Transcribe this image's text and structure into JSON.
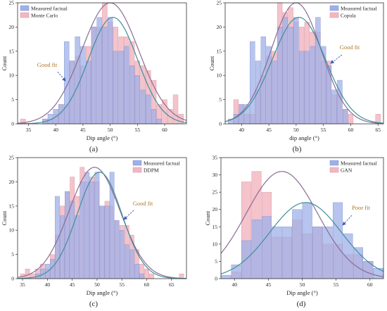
{
  "colors": {
    "measured_fill": "#9fb0e8",
    "measured_stroke": "#7d90d2",
    "measured_curve": "#3f8f9a",
    "synth_fill": "#f2b8c2",
    "synth_stroke": "#d8909c",
    "synth_curve": "#8a6d95",
    "overlap": "#c9b1e0",
    "annotation_arrow": "#3a5fb0",
    "annotation_text": "#b0782b",
    "axis": "#333333"
  },
  "chart_data": [
    {
      "type": "bar",
      "panel_label": "(a)",
      "xlabel": "Dip angle (°)",
      "ylabel": "Count",
      "xlim": [
        33,
        64
      ],
      "ylim": [
        0,
        25
      ],
      "xticks": [
        35,
        40,
        45,
        50,
        55,
        60
      ],
      "yticks": [
        0,
        5,
        10,
        15,
        20,
        25
      ],
      "bin_width": 1,
      "legend": {
        "position": "top-left",
        "entries": [
          "Measured factual",
          "Monte Carlo"
        ]
      },
      "annotation": {
        "text": "Good fit"
      },
      "series": [
        {
          "name": "Measured factual",
          "x": [
            38,
            39,
            40,
            41,
            42,
            43,
            44,
            45,
            46,
            47,
            48,
            49,
            50,
            51,
            52,
            53,
            54,
            55,
            56,
            57,
            58,
            59
          ],
          "values": [
            1,
            2,
            3,
            4,
            17,
            13,
            18,
            16,
            13,
            20,
            22,
            20,
            22,
            15,
            15,
            16,
            12,
            10,
            7,
            6,
            3,
            1
          ],
          "fit": {
            "mean": 50.5,
            "peak": 22
          }
        },
        {
          "name": "Monte Carlo",
          "x": [
            34,
            35,
            36,
            37,
            38,
            39,
            40,
            41,
            42,
            43,
            44,
            45,
            46,
            47,
            48,
            49,
            50,
            51,
            52,
            53,
            54,
            55,
            56,
            57,
            58,
            59,
            60,
            61,
            62,
            63
          ],
          "values": [
            1,
            0,
            0,
            0,
            1,
            1,
            2,
            4,
            4,
            13,
            14,
            12,
            16,
            20,
            20,
            25,
            21,
            20,
            18,
            18,
            17,
            13,
            12,
            11,
            9,
            4,
            5,
            3,
            6,
            2
          ],
          "fit": {
            "mean": 50,
            "peak": 25
          }
        }
      ]
    },
    {
      "type": "bar",
      "panel_label": "(b)",
      "xlabel": "dip angle (°)",
      "ylabel": "Count",
      "xlim": [
        37,
        66
      ],
      "ylim": [
        0,
        25
      ],
      "xticks": [
        40,
        45,
        50,
        55,
        60,
        65
      ],
      "yticks": [
        0,
        5,
        10,
        15,
        20,
        25
      ],
      "bin_width": 1,
      "legend": {
        "position": "top-right",
        "entries": [
          "Measured factual",
          "Copula"
        ]
      },
      "annotation": {
        "text": "Good fit"
      },
      "series": [
        {
          "name": "Measured factual",
          "x": [
            38,
            39,
            40,
            41,
            42,
            43,
            44,
            45,
            46,
            47,
            48,
            49,
            50,
            51,
            52,
            53,
            54,
            55,
            56,
            57,
            58,
            59
          ],
          "values": [
            1,
            2,
            4,
            4,
            17,
            13,
            18,
            16,
            13,
            20,
            22,
            20,
            22,
            15,
            15,
            16,
            22,
            16,
            12,
            7,
            9,
            3
          ],
          "fit": {
            "mean": 50.5,
            "peak": 22
          }
        },
        {
          "name": "Copula",
          "x": [
            39,
            40,
            41,
            42,
            43,
            44,
            45,
            46,
            47,
            48,
            49,
            50,
            51,
            52,
            53,
            54,
            55,
            56,
            57,
            58,
            59,
            60,
            61,
            62,
            63,
            64,
            65
          ],
          "values": [
            5,
            4,
            2,
            2,
            7,
            10,
            14,
            15,
            25,
            23,
            24,
            21,
            20,
            21,
            19,
            19,
            13,
            13,
            6,
            6,
            3,
            2,
            0,
            0,
            0,
            0,
            2
          ],
          "fit": {
            "mean": 50,
            "peak": 25
          }
        }
      ]
    },
    {
      "type": "bar",
      "panel_label": "(c)",
      "xlabel": "Dip angle (°)",
      "ylabel": "Count",
      "xlim": [
        34,
        68
      ],
      "ylim": [
        0,
        25
      ],
      "xticks": [
        35,
        40,
        45,
        50,
        55,
        60,
        65
      ],
      "yticks": [
        0,
        5,
        10,
        15,
        20,
        25
      ],
      "bin_width": 1,
      "legend": {
        "position": "top-right",
        "entries": [
          "Measured factual",
          "DDPM"
        ]
      },
      "annotation": {
        "text": "Good fit"
      },
      "series": [
        {
          "name": "Measured factual",
          "x": [
            38,
            39,
            40,
            41,
            42,
            43,
            44,
            45,
            46,
            47,
            48,
            49,
            50,
            51,
            52,
            53,
            54,
            55,
            56,
            57,
            58,
            59
          ],
          "values": [
            1,
            2,
            3,
            4,
            17,
            13,
            18,
            16,
            13,
            20,
            22,
            20,
            22,
            15,
            15,
            22,
            12,
            10,
            7,
            6,
            3,
            1
          ],
          "fit": {
            "mean": 50.5,
            "peak": 22
          }
        },
        {
          "name": "DDPM",
          "x": [
            35,
            36,
            37,
            38,
            39,
            40,
            41,
            42,
            43,
            44,
            45,
            46,
            47,
            48,
            49,
            50,
            51,
            52,
            53,
            54,
            55,
            56,
            57,
            58,
            59,
            60,
            61,
            62,
            63,
            64,
            65,
            66,
            67
          ],
          "values": [
            1,
            2,
            1,
            2,
            3,
            2,
            5,
            9,
            15,
            18,
            21,
            17,
            23,
            20,
            21,
            20,
            15,
            16,
            15,
            12,
            11,
            11,
            9,
            6,
            3,
            2,
            1,
            0,
            0,
            0,
            0,
            0,
            1
          ],
          "fit": {
            "mean": 49.5,
            "peak": 23
          }
        }
      ]
    },
    {
      "type": "bar",
      "panel_label": "(d)",
      "xlabel": "Dip angle (°)",
      "ylabel": "Count",
      "xlim": [
        38,
        62
      ],
      "ylim": [
        0,
        35
      ],
      "xticks": [
        40,
        45,
        50,
        55,
        60
      ],
      "yticks": [
        0,
        5,
        10,
        15,
        20,
        25,
        30,
        35
      ],
      "bin_width": 1.5,
      "legend": {
        "position": "top-right",
        "entries": [
          "Measured factual",
          "GAN"
        ]
      },
      "annotation": {
        "text": "Poor fit"
      },
      "series": [
        {
          "name": "Measured factual",
          "x": [
            38.75,
            40.25,
            41.75,
            43.25,
            44.75,
            46.25,
            47.75,
            49.25,
            50.75,
            52.25,
            53.75,
            55.25,
            56.75,
            58.25,
            59.75,
            61.25
          ],
          "values": [
            1,
            4,
            11,
            17,
            18,
            15,
            15,
            20,
            22,
            15,
            15,
            22,
            13,
            9,
            5,
            3
          ],
          "fit": {
            "mean": 50.5,
            "peak": 22
          }
        },
        {
          "name": "GAN",
          "x": [
            40.25,
            41.75,
            43.25,
            44.75,
            46.25,
            47.75,
            49.25,
            50.75,
            52.25,
            53.75,
            55.25,
            56.75,
            58.25,
            59.75
          ],
          "values": [
            2,
            28,
            31,
            25,
            12,
            12,
            17,
            13,
            15,
            10,
            10,
            7,
            7,
            5
          ],
          "fit": {
            "mean": 47,
            "peak": 31
          }
        }
      ]
    }
  ]
}
